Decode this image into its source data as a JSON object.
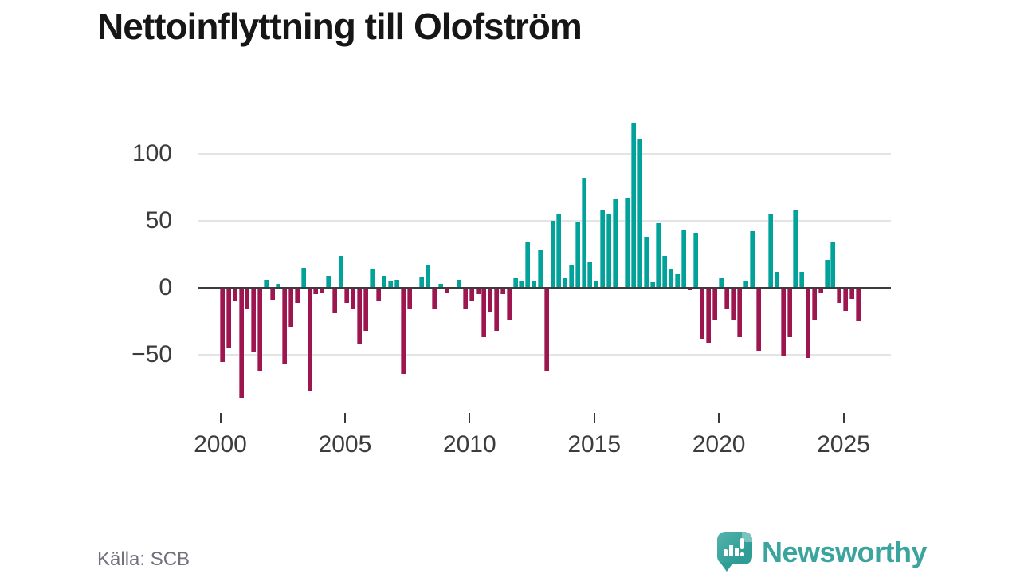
{
  "title": "Nettoinflyttning till Olofström",
  "source": "Källa: SCB",
  "branding": {
    "name": "Newsworthy",
    "icon": "newsworthy-speech-bubble-bar-chart-icon"
  },
  "colors": {
    "positive_bar": "#00a29a",
    "negative_bar": "#9d164f",
    "axis": "#3d3d3d",
    "grid": "#e4e4e4",
    "tick_label": "#3c3c3c",
    "source_text": "#71717b",
    "brand_teal": "#3ba49e"
  },
  "chart_data": {
    "type": "bar",
    "title": "Nettoinflyttning till Olofström",
    "frequency": "quarterly",
    "start": "2000Q1",
    "end": "2025Q3",
    "xlabel": "",
    "ylabel": "",
    "ylim": [
      -90,
      132
    ],
    "grid": true,
    "y_ticks": [
      100,
      50,
      0,
      -50
    ],
    "y_tick_labels": [
      "100",
      "50",
      "0",
      "−50"
    ],
    "x_tick_years": [
      2000,
      2005,
      2010,
      2015,
      2020,
      2025
    ],
    "x_tick_labels": [
      "2000",
      "2005",
      "2010",
      "2015",
      "2020",
      "2025"
    ],
    "series": [
      {
        "name": "Nettoinflyttning till Olofström",
        "values": [
          -55,
          -45,
          -10,
          -82,
          -16,
          -48,
          -62,
          6,
          -9,
          3,
          -57,
          -29,
          -11,
          15,
          -77,
          -5,
          -4,
          9,
          -19,
          24,
          -11,
          -16,
          -42,
          -32,
          14,
          -10,
          9,
          5,
          6,
          -64,
          -16,
          0,
          8,
          17,
          -16,
          3,
          -4,
          0,
          6,
          -16,
          -10,
          -5,
          -37,
          -18,
          -32,
          -5,
          -24,
          7,
          5,
          34,
          5,
          28,
          -62,
          50,
          55,
          7,
          17,
          49,
          82,
          19,
          5,
          58,
          55,
          66,
          0,
          67,
          123,
          111,
          38,
          4,
          48,
          24,
          14,
          10,
          43,
          -2,
          41,
          -38,
          -41,
          -24,
          7,
          -16,
          -24,
          -37,
          5,
          42,
          -47,
          0,
          55,
          12,
          -51,
          -37,
          58,
          12,
          -52,
          -24,
          -4,
          21,
          34,
          -11,
          -17,
          -8,
          -25
        ]
      }
    ]
  }
}
